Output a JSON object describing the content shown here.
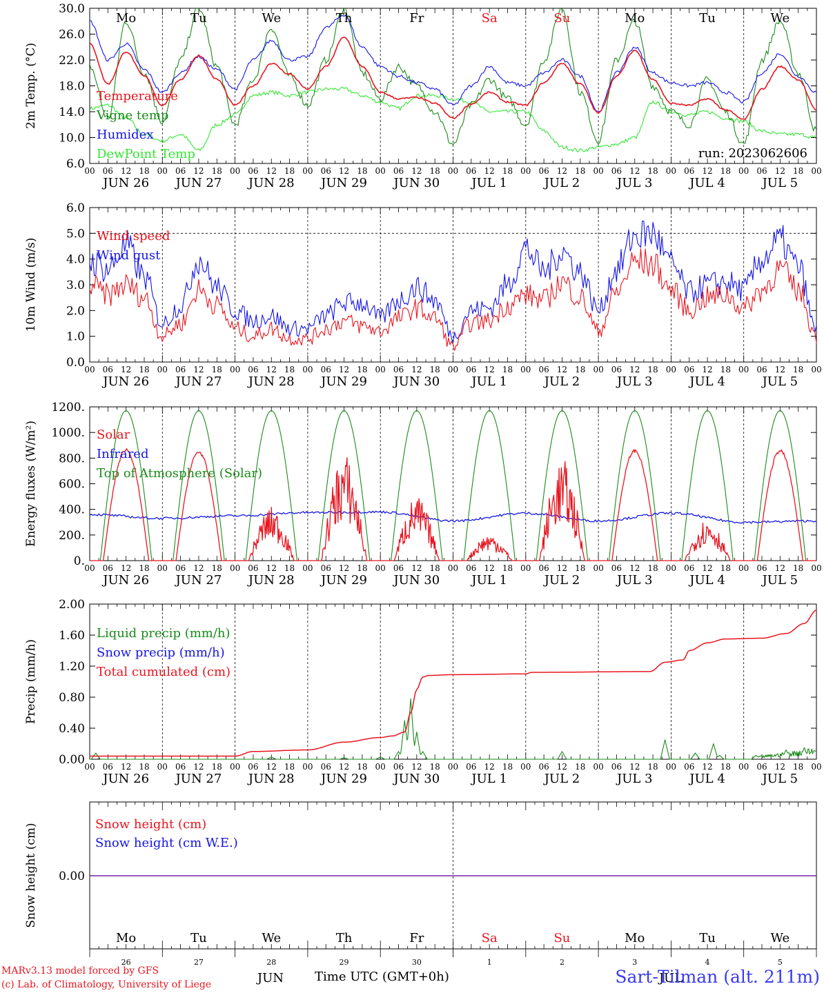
{
  "days": [
    "Mo",
    "Tu",
    "We",
    "Th",
    "Fr",
    "Sa",
    "Su",
    "Mo",
    "Tu",
    "We"
  ],
  "day_colors": [
    "#000000",
    "#000000",
    "#000000",
    "#000000",
    "#000000",
    "#e8141e",
    "#e8141e",
    "#000000",
    "#000000",
    "#000000"
  ],
  "dates": [
    "JUN 26",
    "JUN 27",
    "JUN 28",
    "JUN 29",
    "JUN 30",
    "JUL  1",
    "JUL  2",
    "JUL  3",
    "JUL  4",
    "JUL  5"
  ],
  "hour_ticks": [
    "00",
    "06",
    "12",
    "18"
  ],
  "run_label": "run: 2023062606",
  "bottom": {
    "day_numbers": [
      "26",
      "27",
      "28",
      "29",
      "30",
      "1",
      "2",
      "3",
      "4",
      "5"
    ],
    "months": [
      "JUN",
      "JUL"
    ],
    "xlabel": "Time UTC (GMT+0h)",
    "credit_line1": "MARv3.13 model forced by GFS",
    "credit_line2": "(c) Lab. of Climatology, University of Liege",
    "station": "Sart-Tilman (alt. 211m)"
  },
  "chart_data": [
    {
      "type": "line",
      "ylabel": "2m Temp. (°C)",
      "ylim": [
        6.0,
        30.0
      ],
      "yticks": [
        "6.0",
        "10.0",
        "14.0",
        "18.0",
        "22.0",
        "26.0",
        "30.0"
      ],
      "x_unit": "hours since 2023-06-26 00 UTC",
      "series": [
        {
          "name": "Temperature",
          "color": "#e8141e",
          "x": [
            0,
            6,
            12,
            18,
            24,
            30,
            36,
            42,
            48,
            54,
            60,
            66,
            72,
            78,
            84,
            90,
            96,
            102,
            108,
            114,
            120,
            126,
            132,
            138,
            144,
            150,
            156,
            162,
            168,
            174,
            180,
            186,
            192,
            198,
            204,
            210,
            216,
            222,
            228,
            234,
            240
          ],
          "y": [
            24.5,
            18.3,
            23.3,
            19.5,
            15.0,
            19.0,
            22.7,
            19.0,
            15.0,
            18.0,
            21.5,
            19.8,
            17.5,
            21.0,
            25.5,
            21.0,
            17.0,
            16.0,
            16.2,
            15.3,
            13.0,
            15.2,
            17.0,
            15.5,
            15.0,
            18.5,
            21.5,
            18.3,
            13.8,
            19.5,
            23.5,
            19.0,
            15.3,
            15.0,
            16.0,
            14.3,
            12.8,
            17.5,
            21.0,
            19.0,
            14.3
          ]
        },
        {
          "name": "Vigne temp",
          "color": "#1a8a1a",
          "x": [
            0,
            6,
            12,
            18,
            24,
            30,
            36,
            42,
            48,
            54,
            60,
            66,
            72,
            78,
            84,
            90,
            96,
            102,
            108,
            114,
            120,
            126,
            132,
            138,
            144,
            150,
            156,
            162,
            168,
            174,
            180,
            186,
            192,
            198,
            204,
            210,
            216,
            222,
            228,
            234,
            240
          ],
          "y": [
            21.0,
            13.0,
            28.0,
            20.0,
            12.5,
            22.0,
            30.0,
            21.0,
            12.0,
            19.0,
            27.0,
            19.5,
            15.0,
            22.0,
            30.0,
            20.0,
            16.0,
            21.0,
            18.0,
            14.0,
            9.0,
            15.0,
            19.0,
            16.0,
            12.0,
            22.0,
            30.0,
            17.0,
            9.5,
            22.0,
            28.0,
            18.0,
            14.0,
            12.0,
            19.0,
            14.0,
            9.0,
            22.0,
            28.0,
            20.0,
            11.0
          ]
        },
        {
          "name": "Humidex",
          "color": "#1414e6",
          "x": [
            0,
            6,
            12,
            18,
            24,
            30,
            36,
            42,
            48,
            54,
            60,
            66,
            72,
            78,
            84,
            90,
            96,
            102,
            108,
            114,
            120,
            126,
            132,
            138,
            144,
            150,
            156,
            162,
            168,
            174,
            180,
            186,
            192,
            198,
            204,
            210,
            216,
            222,
            228,
            234,
            240
          ],
          "y": [
            28.0,
            22.0,
            24.5,
            20.5,
            17.0,
            20.0,
            22.5,
            20.5,
            17.5,
            22.0,
            25.0,
            22.0,
            22.5,
            27.0,
            29.0,
            24.0,
            21.0,
            19.5,
            18.5,
            17.5,
            15.0,
            18.0,
            21.0,
            18.5,
            18.0,
            20.0,
            22.0,
            19.5,
            14.0,
            20.0,
            24.0,
            20.0,
            18.5,
            18.0,
            18.5,
            17.0,
            15.5,
            20.0,
            23.0,
            19.5,
            17.0
          ]
        },
        {
          "name": "DewPoint Temp",
          "color": "#32e632",
          "x": [
            0,
            6,
            12,
            18,
            24,
            30,
            36,
            42,
            48,
            54,
            60,
            66,
            72,
            78,
            84,
            90,
            96,
            102,
            108,
            114,
            120,
            126,
            132,
            138,
            144,
            150,
            156,
            162,
            168,
            174,
            180,
            186,
            192,
            198,
            204,
            210,
            216,
            222,
            228,
            234,
            240
          ],
          "y": [
            14.5,
            15.0,
            13.0,
            10.5,
            9.5,
            10.5,
            8.0,
            12.0,
            13.5,
            16.5,
            17.0,
            16.5,
            17.0,
            17.5,
            17.5,
            16.5,
            15.5,
            14.5,
            16.5,
            16.5,
            16.0,
            15.5,
            14.0,
            14.0,
            14.0,
            11.0,
            8.5,
            8.0,
            8.5,
            9.0,
            10.0,
            15.5,
            14.0,
            13.5,
            14.0,
            13.0,
            12.5,
            11.0,
            10.5,
            10.5,
            10.0
          ]
        }
      ]
    },
    {
      "type": "line",
      "ylabel": "10m Wind (m/s)",
      "ylim": [
        0.0,
        6.0
      ],
      "yticks": [
        "0.0",
        "1.0",
        "2.0",
        "3.0",
        "4.0",
        "5.0",
        "6.0"
      ],
      "reference_line": 5.0,
      "x_unit": "hours since 2023-06-26 00 UTC",
      "series": [
        {
          "name": "Wind speed",
          "color": "#e8141e",
          "x": [
            0,
            6,
            12,
            18,
            24,
            30,
            36,
            42,
            48,
            54,
            60,
            66,
            72,
            78,
            84,
            90,
            96,
            102,
            108,
            114,
            120,
            126,
            132,
            138,
            144,
            150,
            156,
            162,
            168,
            174,
            180,
            186,
            192,
            198,
            204,
            210,
            216,
            222,
            228,
            234,
            240
          ],
          "y": [
            3.0,
            2.6,
            3.0,
            2.5,
            1.0,
            1.5,
            2.8,
            2.2,
            1.3,
            1.0,
            1.3,
            0.9,
            0.9,
            1.3,
            1.6,
            1.4,
            1.2,
            1.7,
            2.1,
            1.7,
            0.6,
            1.5,
            1.6,
            2.2,
            2.6,
            2.4,
            3.1,
            2.5,
            1.2,
            2.7,
            3.9,
            3.8,
            2.8,
            2.0,
            2.5,
            2.6,
            2.1,
            2.8,
            3.6,
            2.8,
            1.0
          ]
        },
        {
          "name": "Wind gust",
          "color": "#1414e6",
          "x": [
            0,
            6,
            12,
            18,
            24,
            30,
            36,
            42,
            48,
            54,
            60,
            66,
            72,
            78,
            84,
            90,
            96,
            102,
            108,
            114,
            120,
            126,
            132,
            138,
            144,
            150,
            156,
            162,
            168,
            174,
            180,
            186,
            192,
            198,
            204,
            210,
            216,
            222,
            228,
            234,
            240
          ],
          "y": [
            3.9,
            3.6,
            4.5,
            3.3,
            1.5,
            2.2,
            4.0,
            2.9,
            2.0,
            1.6,
            1.8,
            1.3,
            1.3,
            1.8,
            2.3,
            2.3,
            1.7,
            2.4,
            2.9,
            2.4,
            1.0,
            2.0,
            2.1,
            3.0,
            4.4,
            3.5,
            4.3,
            3.5,
            2.0,
            3.6,
            4.9,
            5.0,
            3.8,
            2.7,
            3.0,
            3.1,
            2.8,
            4.0,
            4.7,
            3.7,
            1.2
          ]
        }
      ]
    },
    {
      "type": "line",
      "ylabel": "Energy fluxes (W/m²)",
      "ylim": [
        0,
        1200
      ],
      "yticks": [
        "0.",
        "200.",
        "400.",
        "600.",
        "800.",
        "1000.",
        "1200."
      ],
      "x_unit": "hours since 2023-06-26 00 UTC",
      "series": [
        {
          "name": "Solar",
          "color": "#e8141e",
          "daily_peak": [
            880,
            860,
            420,
            840,
            500,
            210,
            790,
            870,
            330,
            870
          ]
        },
        {
          "name": "Infrared",
          "color": "#1414e6",
          "x": [
            0,
            24,
            48,
            72,
            96,
            120,
            144,
            168,
            192,
            216,
            240
          ],
          "y": [
            360,
            330,
            350,
            375,
            380,
            310,
            370,
            310,
            370,
            300,
            310
          ]
        },
        {
          "name": "Top of Atmosphere (Solar)",
          "color": "#1a8a1a",
          "daily_peak": [
            1170,
            1170,
            1170,
            1170,
            1170,
            1170,
            1170,
            1170,
            1170,
            1170
          ]
        }
      ]
    },
    {
      "type": "line",
      "ylabel": "Precip (mm/h)",
      "ylim": [
        0.0,
        2.0
      ],
      "yticks": [
        "0.00",
        "0.40",
        "0.80",
        "1.20",
        "1.60",
        "2.00"
      ],
      "x_unit": "hours since 2023-06-26 00 UTC",
      "series": [
        {
          "name": "Liquid precip (mm/h)",
          "color": "#1a8a1a",
          "x": [
            0,
            2,
            4,
            60,
            84,
            96,
            102,
            104,
            106,
            108,
            110,
            112,
            144,
            156,
            165,
            188,
            190,
            192,
            200,
            206,
            208,
            220,
            230,
            236,
            240
          ],
          "y": [
            0,
            0.08,
            0,
            0.03,
            0.02,
            0.03,
            0.1,
            0.5,
            0.78,
            0.35,
            0.1,
            0,
            0,
            0.1,
            0,
            0,
            0.25,
            0,
            0.08,
            0.2,
            0.05,
            0.05,
            0.12,
            0.15,
            0.1
          ]
        },
        {
          "name": "Snow precip (mm/h)",
          "color": "#1414e6",
          "x": [
            0,
            240
          ],
          "y": [
            0,
            0
          ]
        },
        {
          "name": "Total cumulated (cm)",
          "color": "#e8141e",
          "x": [
            0,
            48,
            54,
            72,
            84,
            96,
            100,
            104,
            106,
            108,
            110,
            112,
            120,
            144,
            146,
            185,
            190,
            196,
            198,
            204,
            210,
            222,
            230,
            236,
            240
          ],
          "y": [
            0.04,
            0.04,
            0.1,
            0.12,
            0.22,
            0.28,
            0.3,
            0.35,
            0.6,
            0.9,
            1.06,
            1.08,
            1.09,
            1.1,
            1.12,
            1.13,
            1.25,
            1.28,
            1.4,
            1.5,
            1.55,
            1.56,
            1.62,
            1.75,
            1.92
          ]
        }
      ]
    },
    {
      "type": "line",
      "ylabel": "Snow height (cm)",
      "yticks": [
        "0.00"
      ],
      "series": [
        {
          "name": "Snow height (cm)",
          "color": "#e8141e",
          "x": [
            0,
            240
          ],
          "y": [
            0,
            0
          ]
        },
        {
          "name": "Snow height (cm W.E.)",
          "color": "#1414e6",
          "x": [
            0,
            240
          ],
          "y": [
            0,
            0
          ]
        }
      ]
    }
  ]
}
